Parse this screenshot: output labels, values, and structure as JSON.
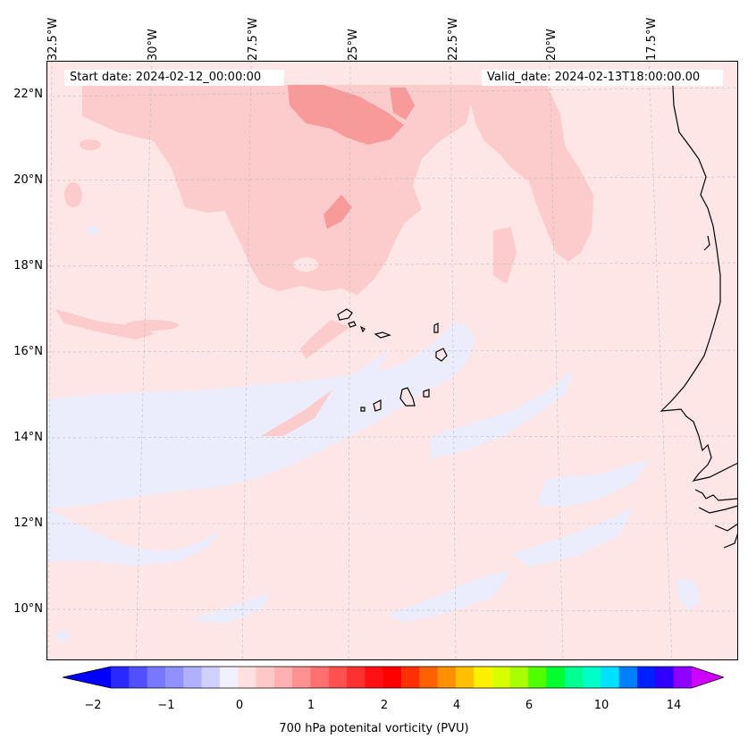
{
  "map": {
    "start_date": "Start date: 2024-02-12_00:00:00",
    "valid_date": "Valid_date: 2024-02-13T18:00:00.00",
    "lon_labels": [
      "32.5°W",
      "30°W",
      "27.5°W",
      "25°W",
      "22.5°W",
      "20°W",
      "17.5°W"
    ],
    "lat_labels": [
      "22°N",
      "20°N",
      "18°N",
      "16°N",
      "14°N",
      "12°N",
      "10°N"
    ],
    "colors": {
      "background": "#fee6e6",
      "low": "#ecedfc",
      "mid": "#fccbcb",
      "high": "#f99a9a",
      "coast": "#000000",
      "grid": "#bbbbbb"
    }
  },
  "colorbar": {
    "label": "700 hPa potenital vorticity (PVU)",
    "ticks": [
      "−2",
      "−1",
      "0",
      "1",
      "2",
      "4",
      "6",
      "10",
      "14"
    ],
    "colors": [
      "#0000ff",
      "#2828ff",
      "#5050ff",
      "#7878ff",
      "#9090ff",
      "#b0b0ff",
      "#d0d0ff",
      "#f0f0ff",
      "#ffe0e0",
      "#ffc8c8",
      "#ffb0b0",
      "#ff9090",
      "#ff7070",
      "#ff5050",
      "#ff3030",
      "#ff1010",
      "#ff0000",
      "#ff3000",
      "#ff6000",
      "#ff9000",
      "#ffc000",
      "#fff000",
      "#d8ff00",
      "#a8ff00",
      "#50ff00",
      "#00ff30",
      "#00ff90",
      "#00ffc8",
      "#00e0ff",
      "#0080ff",
      "#0020ff",
      "#3000ff",
      "#9000ff",
      "#d000ff"
    ]
  }
}
